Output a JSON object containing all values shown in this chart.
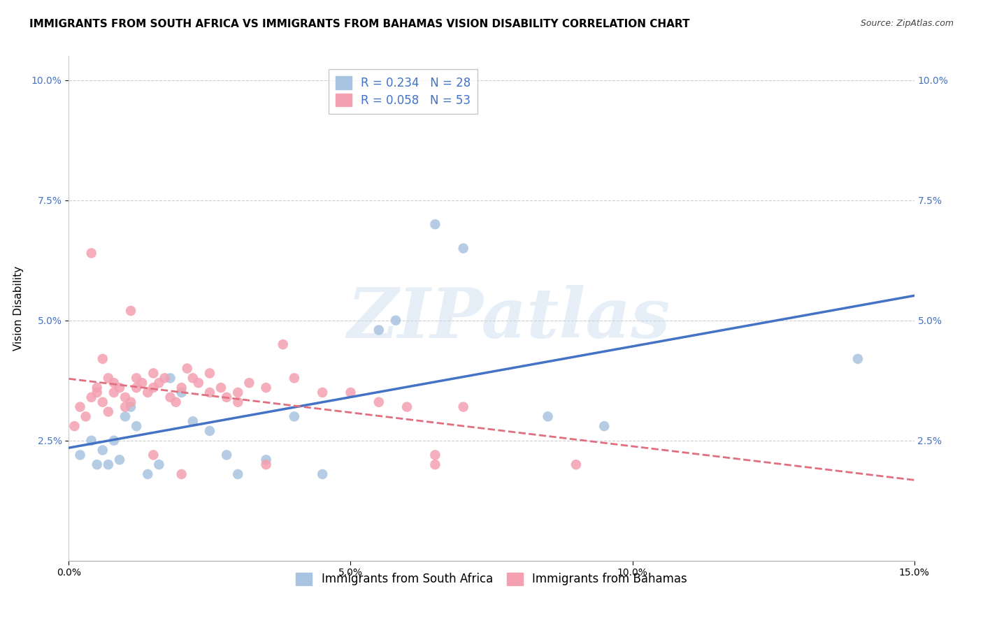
{
  "title": "IMMIGRANTS FROM SOUTH AFRICA VS IMMIGRANTS FROM BAHAMAS VISION DISABILITY CORRELATION CHART",
  "source": "Source: ZipAtlas.com",
  "ylabel": "Vision Disability",
  "xlim": [
    0.0,
    15.0
  ],
  "ylim": [
    0.0,
    10.5
  ],
  "xlim_ticks": [
    0.0,
    5.0,
    10.0,
    15.0
  ],
  "xlim_tick_labels": [
    "0.0%",
    "5.0%",
    "10.0%",
    "15.0%"
  ],
  "ylim_ticks": [
    2.5,
    5.0,
    7.5,
    10.0
  ],
  "ylim_tick_labels": [
    "2.5%",
    "5.0%",
    "7.5%",
    "10.0%"
  ],
  "blue_R": "0.234",
  "blue_N": "28",
  "pink_R": "0.058",
  "pink_N": "53",
  "blue_color": "#a8c4e0",
  "pink_color": "#f4a0b0",
  "blue_line_color": "#4472c4",
  "pink_line_color": "#e07080",
  "watermark": "ZIPatlas",
  "blue_scatter_x": [
    0.2,
    0.4,
    0.5,
    0.6,
    0.7,
    0.8,
    0.9,
    1.0,
    1.1,
    1.2,
    1.4,
    1.6,
    1.8,
    2.0,
    2.2,
    2.5,
    2.8,
    3.0,
    3.5,
    4.0,
    4.5,
    5.5,
    6.5,
    7.0,
    8.5,
    9.5,
    14.0,
    5.8
  ],
  "blue_scatter_y": [
    2.2,
    2.5,
    2.0,
    2.3,
    2.0,
    2.5,
    2.1,
    3.0,
    3.2,
    2.8,
    1.8,
    2.0,
    3.8,
    3.5,
    2.9,
    2.7,
    2.2,
    1.8,
    2.1,
    3.0,
    1.8,
    4.8,
    7.0,
    6.5,
    3.0,
    2.8,
    4.2,
    5.0
  ],
  "pink_scatter_x": [
    0.1,
    0.2,
    0.3,
    0.4,
    0.5,
    0.5,
    0.6,
    0.7,
    0.7,
    0.8,
    0.8,
    0.9,
    1.0,
    1.0,
    1.1,
    1.2,
    1.2,
    1.3,
    1.4,
    1.5,
    1.5,
    1.6,
    1.7,
    1.8,
    1.9,
    2.0,
    2.1,
    2.2,
    2.3,
    2.5,
    2.5,
    2.7,
    2.8,
    3.0,
    3.0,
    3.2,
    3.5,
    3.8,
    4.0,
    4.5,
    5.0,
    5.5,
    6.0,
    6.5,
    7.0,
    0.4,
    0.6,
    1.1,
    1.5,
    2.0,
    3.5,
    6.5,
    9.0
  ],
  "pink_scatter_y": [
    2.8,
    3.2,
    3.0,
    3.4,
    3.5,
    3.6,
    3.3,
    3.1,
    3.8,
    3.7,
    3.5,
    3.6,
    3.2,
    3.4,
    3.3,
    3.6,
    3.8,
    3.7,
    3.5,
    3.6,
    3.9,
    3.7,
    3.8,
    3.4,
    3.3,
    3.6,
    4.0,
    3.8,
    3.7,
    3.9,
    3.5,
    3.6,
    3.4,
    3.5,
    3.3,
    3.7,
    3.6,
    4.5,
    3.8,
    3.5,
    3.5,
    3.3,
    3.2,
    2.2,
    3.2,
    6.4,
    4.2,
    5.2,
    2.2,
    1.8,
    2.0,
    2.0,
    2.0
  ],
  "marker_size": 110,
  "title_fontsize": 11,
  "source_fontsize": 9,
  "axis_label_fontsize": 11,
  "tick_fontsize": 10,
  "legend_fontsize": 12
}
